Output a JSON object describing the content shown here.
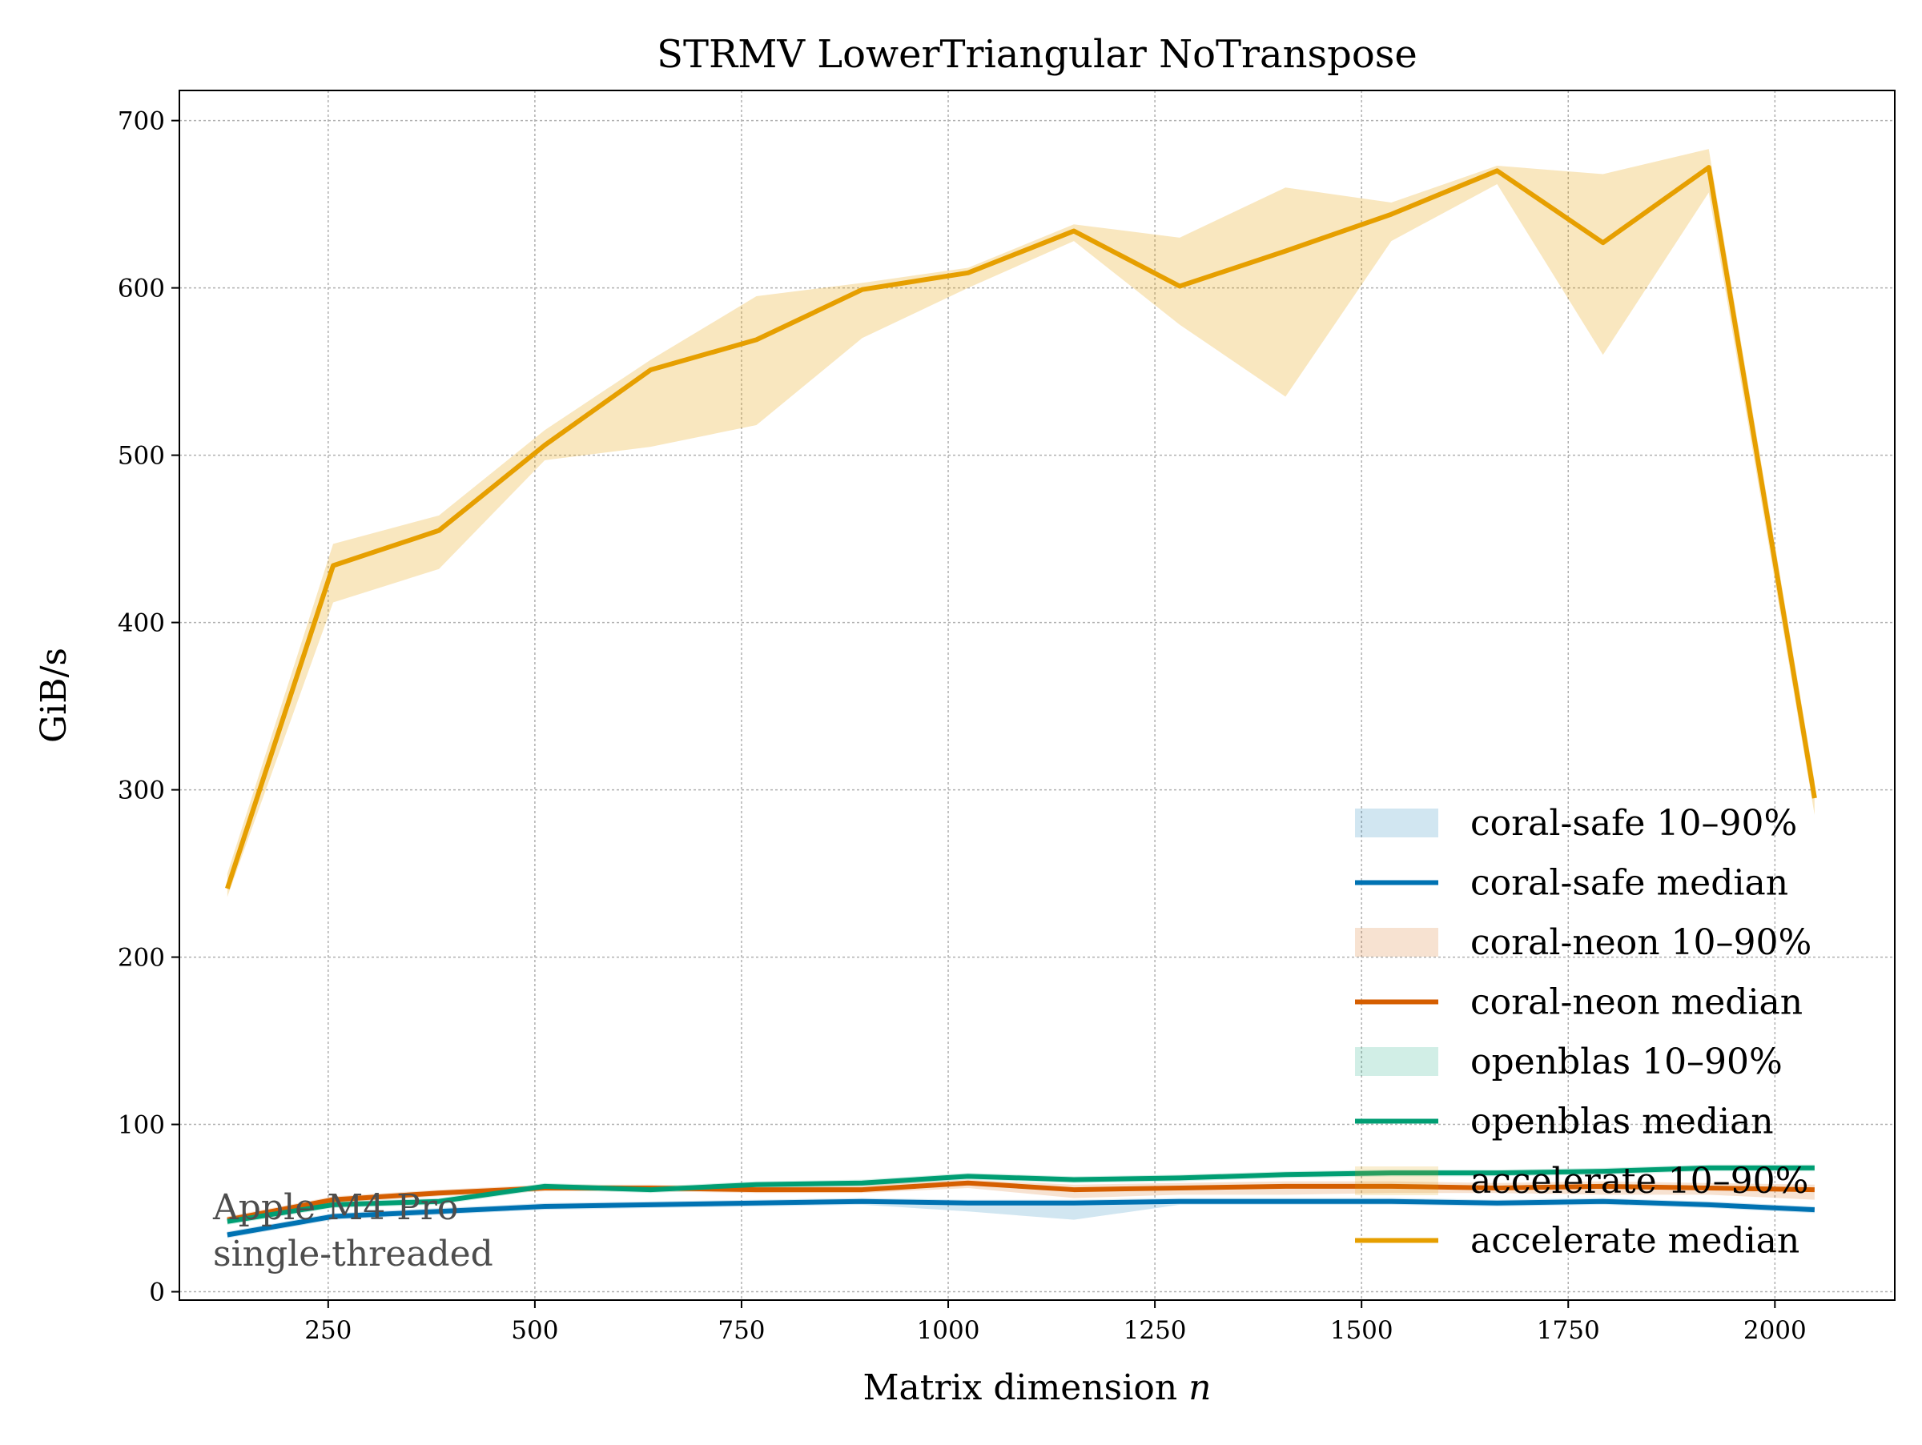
{
  "chart_data": {
    "type": "line",
    "title": "STRMV  LowerTriangular  NoTranspose",
    "xlabel": "Matrix dimension",
    "xlabel_var": "n",
    "ylabel": "GiB/s",
    "xlim": [
      70,
      2145
    ],
    "ylim": [
      -5,
      718
    ],
    "xticks": [
      250,
      500,
      750,
      1000,
      1250,
      1500,
      1750,
      2000
    ],
    "yticks": [
      0,
      100,
      200,
      300,
      400,
      500,
      600,
      700
    ],
    "grid": true,
    "legend_position": "lower-right",
    "annotation": [
      "Apple M4 Pro",
      "single-threaded"
    ],
    "x": [
      128,
      256,
      384,
      512,
      640,
      768,
      896,
      1024,
      1152,
      1280,
      1408,
      1536,
      1664,
      1792,
      1920,
      2048
    ],
    "series": [
      {
        "name": "coral-safe",
        "color": "#0072b2",
        "median": [
          34,
          45,
          48,
          51,
          52,
          53,
          54,
          53,
          53,
          54,
          54,
          54,
          53,
          54,
          52,
          49
        ],
        "p10": [
          32,
          43,
          46,
          49,
          50,
          51,
          52,
          48,
          43,
          52,
          52,
          52,
          51,
          52,
          50,
          47
        ],
        "p90": [
          36,
          47,
          50,
          53,
          54,
          55,
          56,
          55,
          55,
          56,
          56,
          56,
          55,
          56,
          54,
          51
        ]
      },
      {
        "name": "coral-neon",
        "color": "#d55e00",
        "median": [
          43,
          55,
          59,
          62,
          62,
          61,
          61,
          65,
          61,
          62,
          63,
          63,
          62,
          63,
          62,
          61
        ],
        "p10": [
          41,
          53,
          57,
          60,
          60,
          59,
          59,
          62,
          56,
          58,
          58,
          59,
          59,
          58,
          58,
          55
        ],
        "p90": [
          45,
          57,
          61,
          64,
          64,
          63,
          64,
          67,
          64,
          65,
          66,
          66,
          65,
          66,
          65,
          64
        ]
      },
      {
        "name": "openblas",
        "color": "#009e73",
        "median": [
          42,
          52,
          54,
          63,
          61,
          64,
          65,
          69,
          67,
          68,
          70,
          71,
          71,
          72,
          74,
          74
        ],
        "p10": [
          40,
          50,
          52,
          61,
          59,
          62,
          63,
          67,
          65,
          66,
          68,
          69,
          69,
          70,
          72,
          72
        ],
        "p90": [
          44,
          54,
          56,
          65,
          63,
          66,
          67,
          71,
          69,
          70,
          72,
          73,
          73,
          74,
          76,
          76
        ]
      },
      {
        "name": "accelerate",
        "color": "#e69f00",
        "median": [
          241,
          434,
          455,
          506,
          551,
          569,
          599,
          609,
          634,
          601,
          622,
          644,
          670,
          627,
          672,
          295
        ],
        "p10": [
          236,
          412,
          432,
          497,
          505,
          518,
          570,
          600,
          628,
          578,
          535,
          628,
          662,
          560,
          657,
          285
        ],
        "p90": [
          250,
          447,
          464,
          515,
          557,
          595,
          603,
          612,
          638,
          630,
          660,
          651,
          673,
          668,
          683,
          305
        ]
      }
    ],
    "legend": [
      {
        "label": "coral-safe 10–90%",
        "kind": "band",
        "series": 0
      },
      {
        "label": "coral-safe median",
        "kind": "line",
        "series": 0
      },
      {
        "label": "coral-neon 10–90%",
        "kind": "band",
        "series": 1
      },
      {
        "label": "coral-neon median",
        "kind": "line",
        "series": 1
      },
      {
        "label": "openblas 10–90%",
        "kind": "band",
        "series": 2
      },
      {
        "label": "openblas median",
        "kind": "line",
        "series": 2
      },
      {
        "label": "accelerate 10–90%",
        "kind": "band",
        "series": 3
      },
      {
        "label": "accelerate median",
        "kind": "line",
        "series": 3
      }
    ]
  }
}
